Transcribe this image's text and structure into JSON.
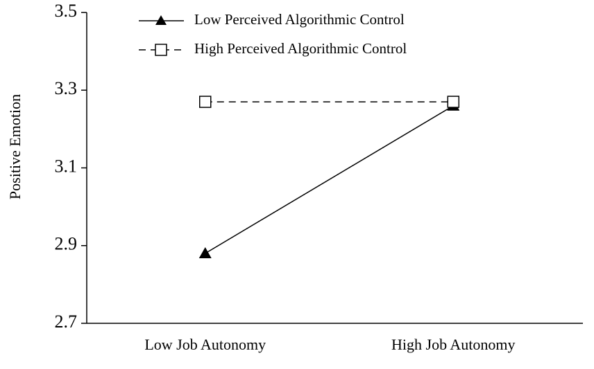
{
  "chart_data": {
    "type": "line",
    "y_label": "Positive Emotion",
    "categories": [
      "Low Job Autonomy",
      "High Job Autonomy"
    ],
    "series": [
      {
        "name": "Low Perceived Algorithmic Control",
        "color": "#000000",
        "marker": "triangle",
        "line_style": "solid",
        "values": [
          2.88,
          3.26
        ]
      },
      {
        "name": "High Perceived Algorithmic Control",
        "color": "#000000",
        "marker": "square",
        "line_style": "dashed",
        "values": [
          3.27,
          3.27
        ]
      }
    ],
    "ylim": [
      2.7,
      3.5
    ],
    "yticks": [
      {
        "value": 2.7,
        "label": "2.7"
      },
      {
        "value": 2.9,
        "label": "2.9"
      },
      {
        "value": 3.1,
        "label": "3.1"
      },
      {
        "value": 3.3,
        "label": "3.3"
      },
      {
        "value": 3.5,
        "label": "3.5"
      }
    ],
    "legend": "top"
  }
}
